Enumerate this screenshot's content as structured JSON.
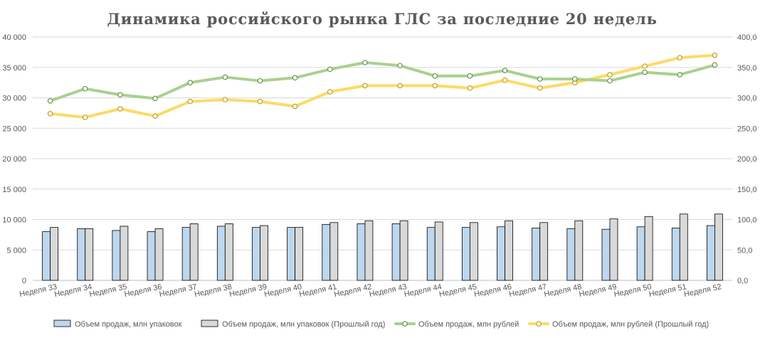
{
  "chart_data": {
    "type": "bar",
    "title": "Динамика российского рынка ГЛС за последние 20 недель",
    "categories": [
      "Неделя 33",
      "Неделя 34",
      "Неделя 35",
      "Неделя 36",
      "Неделя 37",
      "Неделя 38",
      "Неделя 39",
      "Неделя 40",
      "Неделя 41",
      "Неделя 42",
      "Неделя 43",
      "Неделя 44",
      "Неделя 45",
      "Неделя 46",
      "Неделя 47",
      "Неделя 48",
      "Неделя 49",
      "Неделя 50",
      "Неделя 51",
      "Неделя 52"
    ],
    "y_left": {
      "min": 0,
      "max": 40000,
      "step": 5000,
      "tick_labels": [
        "0",
        "5 000",
        "10 000",
        "15 000",
        "20 000",
        "25 000",
        "30 000",
        "35 000",
        "40 000"
      ]
    },
    "y_right": {
      "min": 0,
      "max": 400,
      "step": 50,
      "tick_labels": [
        "0,0",
        "50,0",
        "100,0",
        "150,0",
        "200,0",
        "250,0",
        "300,0",
        "350,0",
        "400,0"
      ]
    },
    "grid": true,
    "legend_position": "bottom",
    "series": [
      {
        "name": "Объем продаж, млн упаковок",
        "type": "bar",
        "axis": "right",
        "color": "#BDD7EE",
        "values": [
          80,
          85,
          82,
          80,
          87,
          89,
          87,
          87,
          92,
          93,
          93,
          87,
          87,
          88,
          86,
          85,
          84,
          88,
          86,
          90
        ]
      },
      {
        "name": "Объем продаж, млн упаковок (Прошлый год)",
        "type": "bar",
        "axis": "right",
        "color": "#D9D9D9",
        "values": [
          87,
          85,
          89,
          85,
          93,
          93,
          90,
          87,
          95,
          98,
          98,
          96,
          95,
          98,
          95,
          98,
          101,
          105,
          109,
          109
        ]
      },
      {
        "name": "Объем продаж, млн рублей",
        "type": "line",
        "axis": "left",
        "color": "#A9D18E",
        "values": [
          29500,
          31500,
          30500,
          29900,
          32500,
          33400,
          32800,
          33300,
          34700,
          35800,
          35300,
          33600,
          33600,
          34500,
          33100,
          33100,
          32800,
          34200,
          33800,
          35400
        ]
      },
      {
        "name": "Объем продаж, млн рублей (Прошлый год)",
        "type": "line",
        "axis": "left",
        "color": "#FFD966",
        "values": [
          27400,
          26800,
          28200,
          27000,
          29400,
          29700,
          29400,
          28600,
          31000,
          32000,
          32000,
          32000,
          31600,
          32900,
          31600,
          32500,
          33800,
          35200,
          36600,
          37000
        ]
      }
    ]
  }
}
